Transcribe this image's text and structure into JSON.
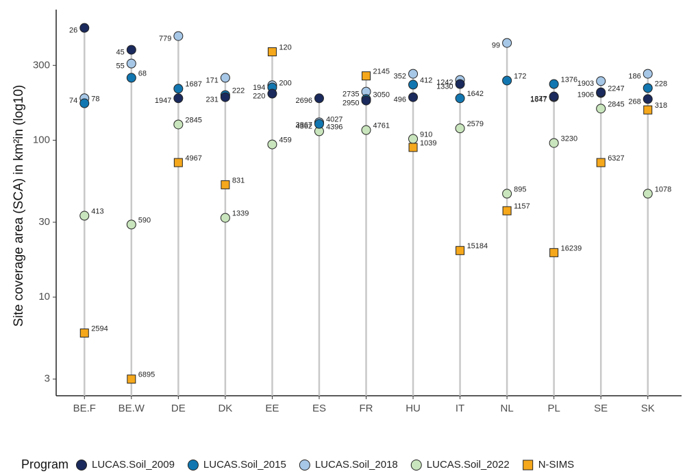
{
  "chart_data": {
    "type": "dot",
    "y_label": "Site coverage area (SCA) in km²in (log10)",
    "legend_title": "Program",
    "log_scale": true,
    "categories": [
      "BE.F",
      "BE.W",
      "DE",
      "DK",
      "EE",
      "ES",
      "FR",
      "HU",
      "IT",
      "NL",
      "PL",
      "SE",
      "SK"
    ],
    "ylim": [
      2.35,
      680
    ],
    "yticks": [
      3,
      10,
      30,
      100,
      300
    ],
    "series": [
      {
        "name": "LUCAS.Soil_2009",
        "color": "#1b2a5c",
        "shape": "circle",
        "values": [
          520,
          377,
          185,
          188,
          198,
          185,
          179,
          188,
          228,
          null,
          190,
          202,
          183
        ],
        "labels": [
          26,
          45,
          1947,
          231,
          220,
          2696,
          2950,
          496,
          1330,
          null,
          1377,
          1906,
          268
        ]
      },
      {
        "name": "LUCAS.Soil_2015",
        "color": "#1277b0",
        "shape": "circle",
        "values": [
          172,
          250,
          213,
          194,
          217,
          127,
          183,
          226,
          185,
          240,
          228,
          200,
          215
        ],
        "labels": [
          78,
          68,
          1687,
          222,
          200,
          4027,
          3050,
          412,
          1642,
          172,
          1376,
          2247,
          228
        ]
      },
      {
        "name": "LUCAS.Soil_2018",
        "color": "#a7c7e7",
        "shape": "circle",
        "values": [
          185,
          308,
          461,
          250,
          224,
          130,
          204,
          265,
          242,
          417,
          188,
          238,
          265
        ],
        "labels": [
          74,
          55,
          779,
          171,
          194,
          3867,
          2735,
          352,
          1242,
          99,
          1647,
          1903,
          186
        ]
      },
      {
        "name": "LUCAS.Soil_2022",
        "color": "#c9e5bd",
        "shape": "circle",
        "values": [
          33,
          29,
          126,
          32,
          94,
          114,
          116,
          102,
          119,
          45.6,
          96,
          159,
          45.6
        ],
        "labels": [
          413,
          590,
          2845,
          1339,
          459,
          4396,
          4761,
          910,
          2579,
          895,
          3230,
          2845,
          1078
        ]
      },
      {
        "name": "N-SIMS",
        "color": "#f5a81c",
        "shape": "square",
        "values": [
          5.9,
          3.0,
          72,
          52,
          366,
          null,
          257,
          90,
          19.8,
          35.5,
          19.2,
          72,
          156
        ],
        "labels": [
          2594,
          6895,
          4967,
          831,
          120,
          4362,
          2145,
          1039,
          15184,
          1157,
          16239,
          6327,
          318
        ]
      }
    ]
  }
}
